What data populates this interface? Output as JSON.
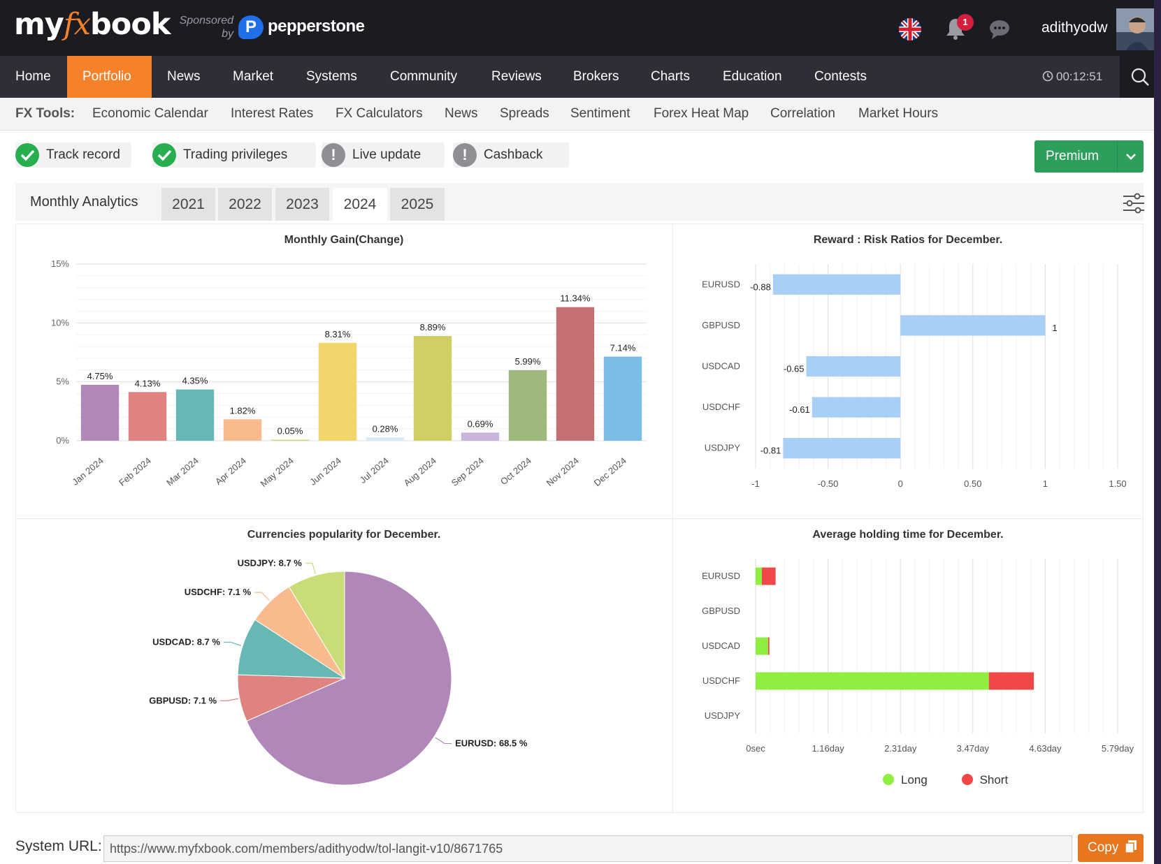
{
  "header": {
    "logo": {
      "prefix": "my",
      "fx": "fx",
      "suffix": "book"
    },
    "sponsored_line1": "Sponsored",
    "sponsored_line2": "by",
    "sponsor_name": "pepperstone",
    "notification_count": "1",
    "username": "adithyodw"
  },
  "main_nav": {
    "items": [
      "Home",
      "Portfolio",
      "News",
      "Market",
      "Systems",
      "Community",
      "Reviews",
      "Brokers",
      "Charts",
      "Education",
      "Contests"
    ],
    "active": "Portfolio",
    "timer": "00:12:51"
  },
  "tools_nav": {
    "label": "FX Tools:",
    "items": [
      "Economic Calendar",
      "Interest Rates",
      "FX Calculators",
      "News",
      "Spreads",
      "Sentiment",
      "Forex Heat Map",
      "Correlation",
      "Market Hours"
    ]
  },
  "status": {
    "items": [
      {
        "label": "Track record",
        "state": "ok"
      },
      {
        "label": "Trading privileges",
        "state": "ok"
      },
      {
        "label": "Live update",
        "state": "warn"
      },
      {
        "label": "Cashback",
        "state": "warn"
      }
    ],
    "premium_label": "Premium"
  },
  "analytics": {
    "title": "Monthly Analytics",
    "years": [
      "2021",
      "2022",
      "2023",
      "2024",
      "2025"
    ],
    "active_year": "2024"
  },
  "colors": {
    "accent_orange": "#f5822a",
    "premium_green": "#2e9e5c",
    "long": "#90ee40",
    "short": "#f04848",
    "ratio_bar": "#a8cff5"
  },
  "chart_data": [
    {
      "type": "bar",
      "title": "Monthly Gain(Change)",
      "categories": [
        "Jan 2024",
        "Feb 2024",
        "Mar 2024",
        "Apr 2024",
        "May 2024",
        "Jun 2024",
        "Jul 2024",
        "Aug 2024",
        "Sep 2024",
        "Oct 2024",
        "Nov 2024",
        "Dec 2024"
      ],
      "values": [
        4.75,
        4.13,
        4.35,
        1.82,
        0.05,
        8.31,
        0.28,
        8.89,
        0.69,
        5.99,
        11.34,
        7.14
      ],
      "labels": [
        "4.75%",
        "4.13%",
        "4.35%",
        "1.82%",
        "0.05%",
        "8.31%",
        "0.28%",
        "8.89%",
        "0.69%",
        "5.99%",
        "11.34%",
        "7.14%"
      ],
      "colors": [
        "#b087b8",
        "#de8380",
        "#66b8b4",
        "#f9bb8e",
        "#c8dc78",
        "#f2d56b",
        "#d6ecf9",
        "#d0cf63",
        "#c9b4db",
        "#9eb97c",
        "#c46f73",
        "#7abde6"
      ],
      "yticks": [
        "0%",
        "5%",
        "10%",
        "15%"
      ],
      "ylim": [
        0,
        15
      ],
      "grid": true
    },
    {
      "type": "bar",
      "orientation": "horizontal",
      "title": "Reward : Risk Ratios for December.",
      "categories": [
        "EURUSD",
        "GBPUSD",
        "USDCAD",
        "USDCHF",
        "USDJPY"
      ],
      "values": [
        -0.88,
        1,
        -0.65,
        -0.61,
        -0.81
      ],
      "labels": [
        "-0.88",
        "1",
        "-0.65",
        "-0.61",
        "-0.81"
      ],
      "xticks": [
        "-1",
        "-0.50",
        "0",
        "0.50",
        "1",
        "1.50"
      ],
      "xlim": [
        -1,
        1.5
      ],
      "grid": true
    },
    {
      "type": "pie",
      "title": "Currencies popularity for December.",
      "slices": [
        {
          "name": "EURUSD",
          "value": 68.5,
          "label": "EURUSD: 68.5 %",
          "color": "#b087b8"
        },
        {
          "name": "GBPUSD",
          "value": 7.1,
          "label": "GBPUSD: 7.1 %",
          "color": "#de8380"
        },
        {
          "name": "USDCAD",
          "value": 8.7,
          "label": "USDCAD: 8.7 %",
          "color": "#66b8b4"
        },
        {
          "name": "USDCHF",
          "value": 7.1,
          "label": "USDCHF: 7.1 %",
          "color": "#f9bb8e"
        },
        {
          "name": "USDJPY",
          "value": 8.7,
          "label": "USDJPY: 8.7 %",
          "color": "#c8dc78"
        }
      ]
    },
    {
      "type": "bar",
      "orientation": "horizontal",
      "stacked": true,
      "title": "Average holding time for December.",
      "categories": [
        "EURUSD",
        "GBPUSD",
        "USDCAD",
        "USDCHF",
        "USDJPY"
      ],
      "x_unit": "day",
      "series": [
        {
          "name": "Long",
          "values": [
            0.1,
            0,
            0.2,
            3.73,
            0
          ]
        },
        {
          "name": "Short",
          "values": [
            0.22,
            0,
            0.02,
            0.72,
            0
          ]
        }
      ],
      "xticks": [
        "0sec",
        "1.16day",
        "2.31day",
        "3.47day",
        "4.63day",
        "5.79day"
      ],
      "xlim": [
        0,
        5.79
      ],
      "legend": "bottom",
      "grid": true
    }
  ],
  "system_url": {
    "label": "System URL:",
    "value": "https://www.myfxbook.com/members/adithyodw/tol-langit-v10/8671765",
    "copy_label": "Copy"
  }
}
